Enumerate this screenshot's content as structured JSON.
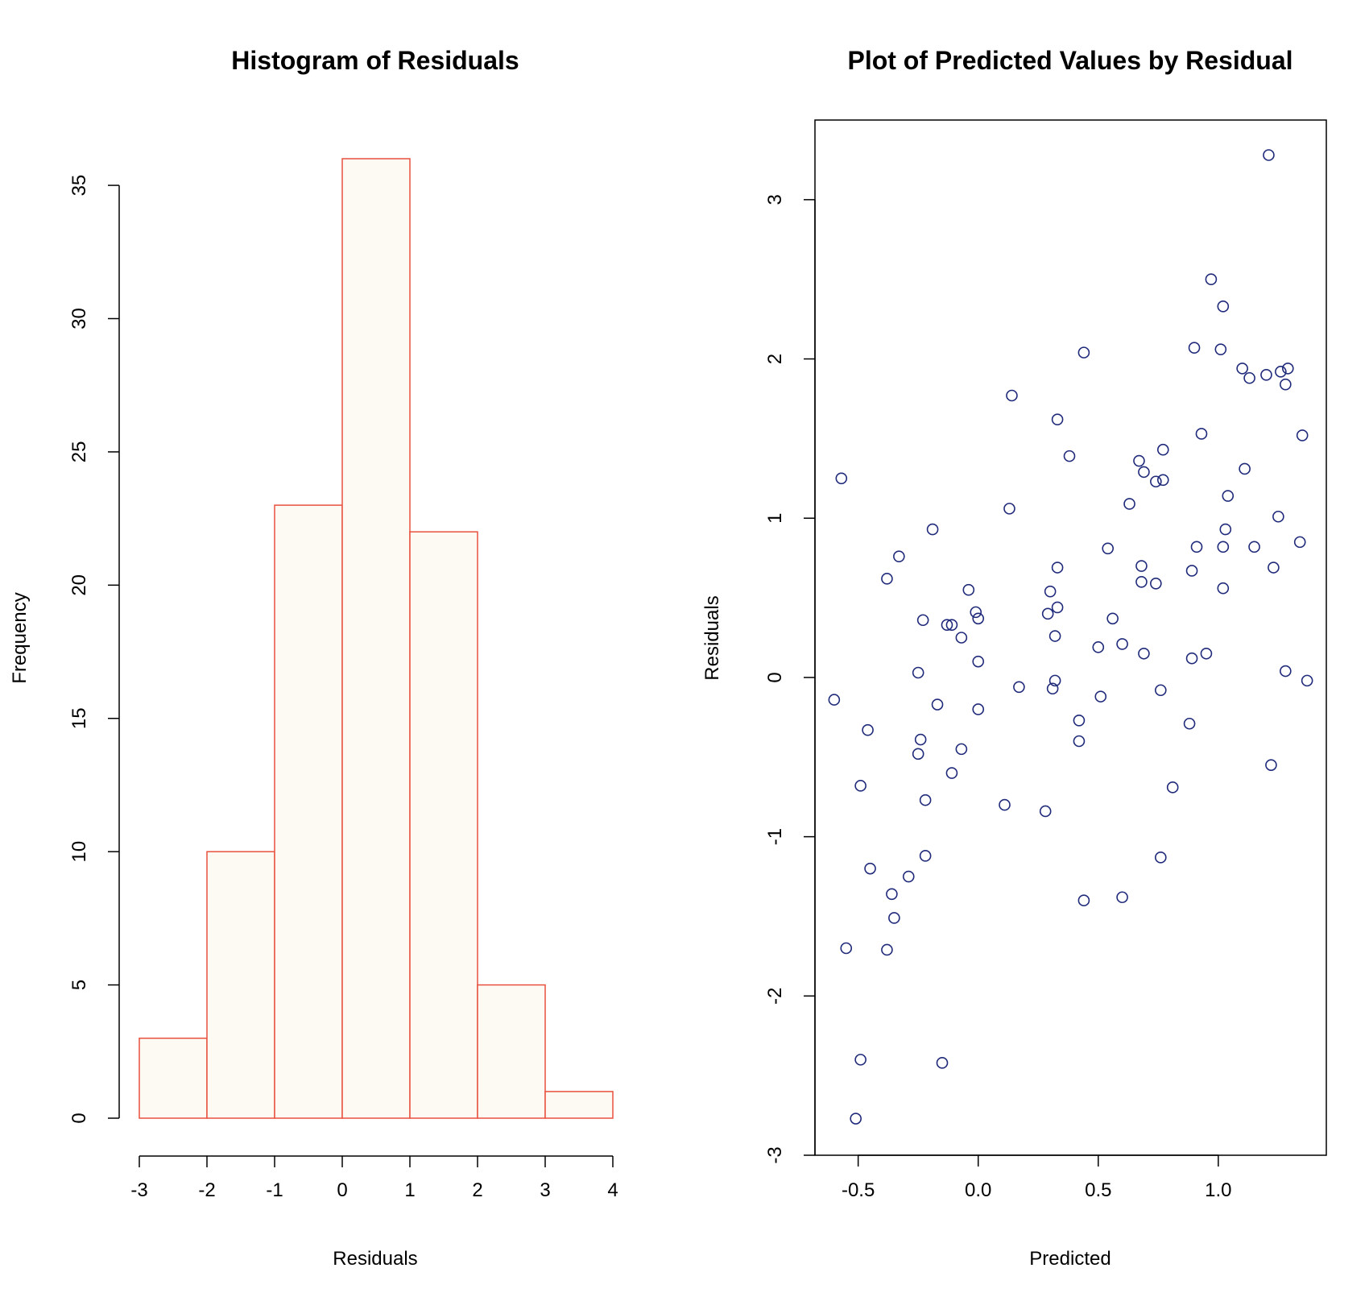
{
  "chart_data": [
    {
      "type": "bar",
      "title": "Histogram of Residuals",
      "xlabel": "Residuals",
      "ylabel": "Frequency",
      "bin_edges": [
        -3,
        -2,
        -1,
        0,
        1,
        2,
        3,
        4
      ],
      "values": [
        3,
        10,
        23,
        36,
        22,
        5,
        1
      ],
      "xlim": [
        -3,
        4
      ],
      "ylim": [
        0,
        36
      ],
      "x_ticks": [
        "-3",
        "-2",
        "-1",
        "0",
        "1",
        "2",
        "3",
        "4"
      ],
      "y_ticks": [
        "0",
        "5",
        "10",
        "15",
        "20",
        "25",
        "30",
        "35"
      ],
      "bar_fill": "#fdf9f3",
      "bar_stroke": "#e8513e",
      "grid": false
    },
    {
      "type": "scatter",
      "title": "Plot of Predicted Values by Residual",
      "xlabel": "Predicted",
      "ylabel": "Residuals",
      "xlim": [
        -0.68,
        1.45
      ],
      "ylim": [
        -3.0,
        3.5
      ],
      "x_ticks": [
        "-0.5",
        "0.0",
        "0.5",
        "1.0"
      ],
      "y_ticks": [
        "-3",
        "-2",
        "-1",
        "0",
        "1",
        "2",
        "3"
      ],
      "point_color": "#1f2a7a",
      "grid": false,
      "points": [
        [
          -0.6,
          -0.14
        ],
        [
          -0.57,
          1.25
        ],
        [
          -0.55,
          -1.7
        ],
        [
          -0.51,
          -2.77
        ],
        [
          -0.49,
          -2.4
        ],
        [
          -0.49,
          -0.68
        ],
        [
          -0.46,
          -0.33
        ],
        [
          -0.45,
          -1.2
        ],
        [
          -0.38,
          0.62
        ],
        [
          -0.38,
          -1.71
        ],
        [
          -0.36,
          -1.36
        ],
        [
          -0.35,
          -1.51
        ],
        [
          -0.33,
          0.76
        ],
        [
          -0.29,
          -1.25
        ],
        [
          -0.25,
          0.03
        ],
        [
          -0.25,
          -0.48
        ],
        [
          -0.24,
          -0.39
        ],
        [
          -0.23,
          0.36
        ],
        [
          -0.22,
          -0.77
        ],
        [
          -0.22,
          -1.12
        ],
        [
          -0.19,
          0.93
        ],
        [
          -0.17,
          -0.17
        ],
        [
          -0.15,
          -2.42
        ],
        [
          -0.13,
          0.33
        ],
        [
          -0.11,
          0.33
        ],
        [
          -0.11,
          -0.6
        ],
        [
          -0.07,
          0.25
        ],
        [
          -0.07,
          -0.45
        ],
        [
          -0.04,
          0.55
        ],
        [
          -0.01,
          0.41
        ],
        [
          0.0,
          0.37
        ],
        [
          0.0,
          0.1
        ],
        [
          0.0,
          -0.2
        ],
        [
          0.11,
          -0.8
        ],
        [
          0.13,
          1.06
        ],
        [
          0.14,
          1.77
        ],
        [
          0.17,
          -0.06
        ],
        [
          0.28,
          -0.84
        ],
        [
          0.29,
          0.4
        ],
        [
          0.3,
          0.54
        ],
        [
          0.31,
          -0.07
        ],
        [
          0.32,
          0.26
        ],
        [
          0.32,
          -0.02
        ],
        [
          0.33,
          0.44
        ],
        [
          0.33,
          0.69
        ],
        [
          0.33,
          1.62
        ],
        [
          0.38,
          1.39
        ],
        [
          0.42,
          -0.27
        ],
        [
          0.42,
          -0.4
        ],
        [
          0.44,
          2.04
        ],
        [
          0.44,
          -1.4
        ],
        [
          0.5,
          0.19
        ],
        [
          0.51,
          -0.12
        ],
        [
          0.54,
          0.81
        ],
        [
          0.56,
          0.37
        ],
        [
          0.6,
          0.21
        ],
        [
          0.6,
          -1.38
        ],
        [
          0.63,
          1.09
        ],
        [
          0.67,
          1.36
        ],
        [
          0.68,
          0.7
        ],
        [
          0.68,
          0.6
        ],
        [
          0.69,
          1.29
        ],
        [
          0.69,
          0.15
        ],
        [
          0.74,
          0.59
        ],
        [
          0.74,
          1.23
        ],
        [
          0.76,
          -0.08
        ],
        [
          0.76,
          -1.13
        ],
        [
          0.77,
          1.24
        ],
        [
          0.77,
          1.43
        ],
        [
          0.81,
          -0.69
        ],
        [
          0.88,
          -0.29
        ],
        [
          0.89,
          0.67
        ],
        [
          0.89,
          0.12
        ],
        [
          0.9,
          2.07
        ],
        [
          0.91,
          0.82
        ],
        [
          0.93,
          1.53
        ],
        [
          0.95,
          0.15
        ],
        [
          0.97,
          2.5
        ],
        [
          1.01,
          2.06
        ],
        [
          1.02,
          2.33
        ],
        [
          1.02,
          0.82
        ],
        [
          1.02,
          0.56
        ],
        [
          1.03,
          0.93
        ],
        [
          1.04,
          1.14
        ],
        [
          1.1,
          1.94
        ],
        [
          1.11,
          1.31
        ],
        [
          1.13,
          1.88
        ],
        [
          1.15,
          0.82
        ],
        [
          1.2,
          1.9
        ],
        [
          1.21,
          3.28
        ],
        [
          1.22,
          -0.55
        ],
        [
          1.23,
          0.69
        ],
        [
          1.25,
          1.01
        ],
        [
          1.26,
          1.92
        ],
        [
          1.28,
          1.84
        ],
        [
          1.28,
          0.04
        ],
        [
          1.29,
          1.94
        ],
        [
          1.34,
          0.85
        ],
        [
          1.35,
          1.52
        ],
        [
          1.37,
          -0.02
        ]
      ]
    }
  ]
}
